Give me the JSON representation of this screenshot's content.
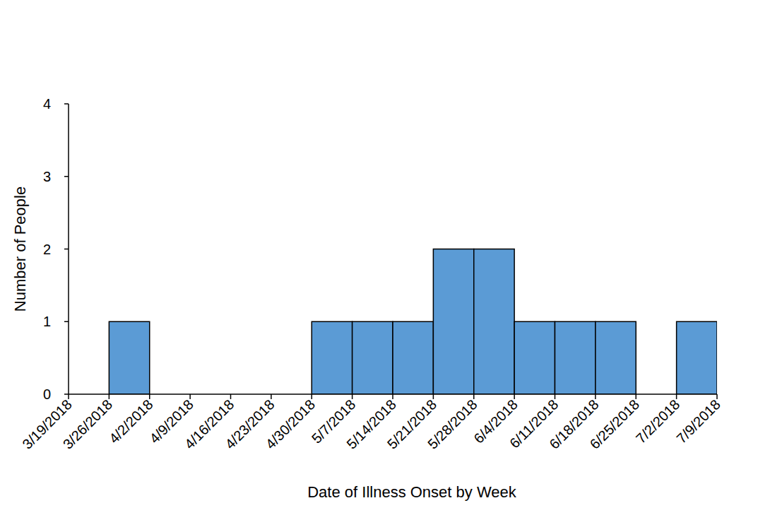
{
  "chart_data": {
    "type": "histogram",
    "x_label": "Date of Illness Onset by Week",
    "y_label": "Number of People",
    "bins": [
      "3/19/2018",
      "3/26/2018",
      "4/2/2018",
      "4/9/2018",
      "4/16/2018",
      "4/23/2018",
      "4/30/2018",
      "5/7/2018",
      "5/14/2018",
      "5/21/2018",
      "5/28/2018",
      "6/4/2018",
      "6/11/2018",
      "6/18/2018",
      "6/25/2018",
      "7/2/2018",
      "7/9/2018"
    ],
    "values": [
      0,
      1,
      0,
      0,
      0,
      0,
      1,
      1,
      1,
      2,
      2,
      1,
      1,
      1,
      0,
      1
    ],
    "color": "#5b9bd5",
    "ylim": [
      0,
      4
    ],
    "yticks": [
      0,
      1,
      2,
      3,
      4
    ],
    "grid": false
  }
}
